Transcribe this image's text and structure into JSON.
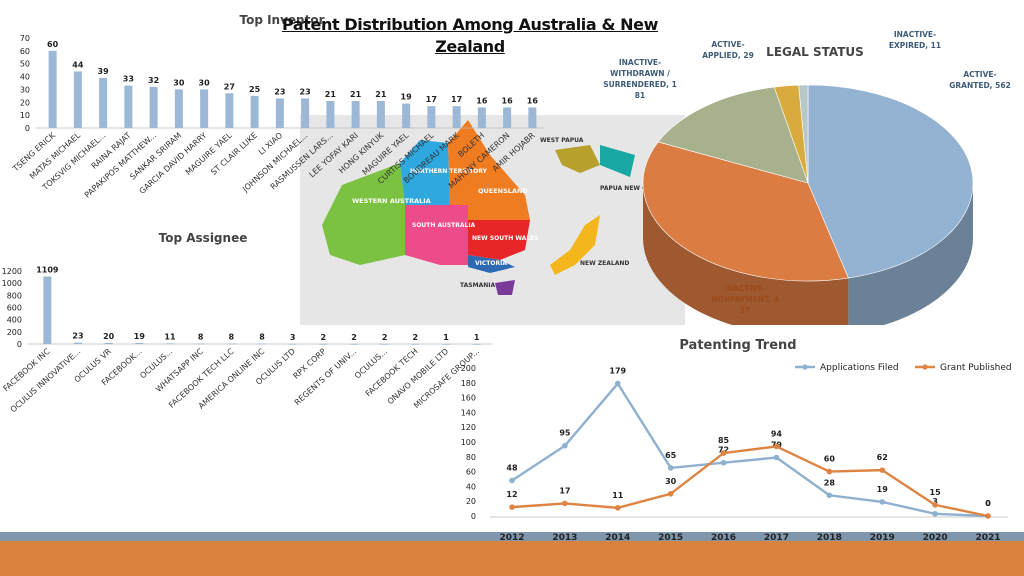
{
  "page": {
    "title": "Patent Distribution Among Australia & New Zealand"
  },
  "colors": {
    "bar": "#9cb8d6",
    "series_blue": "#8fb0cf",
    "series_orange": "#de8443",
    "footer_band": "#7f96ad",
    "footer_orange": "#d8823e"
  },
  "chart_data": [
    {
      "type": "bar",
      "title": "Top Inventor",
      "categories": [
        "TSENG ERICK",
        "MATAS MICHAEL",
        "TOKSVIG MICHAEL...",
        "RAINA RAJAT",
        "PAPAKIPOS MATTHEW...",
        "SANKAR SRIRAM",
        "GARCIA DAVID HARRY",
        "MAGUIRE YAEL",
        "ST CLAIR LUKE",
        "LI XIAO",
        "JOHNSON MICHAEL...",
        "RASMUSSEN LARS...",
        "LEE YOFAY KARI",
        "HONG KINYUK",
        "MAGUIRE YAEL",
        "CURTISS MICHAEL",
        "BOUDREAU MARK",
        "BOLETH",
        "MAHONY CAMERON",
        "AMIR HOJABR"
      ],
      "values": [
        60,
        44,
        39,
        33,
        32,
        30,
        30,
        27,
        25,
        23,
        23,
        21,
        21,
        21,
        19,
        17,
        17,
        16,
        16,
        16
      ],
      "yticks": [
        0,
        10,
        20,
        30,
        40,
        50,
        60,
        70
      ],
      "ylim": [
        0,
        70
      ]
    },
    {
      "type": "bar",
      "title": "Top Assignee",
      "categories": [
        "FACEBOOK INC",
        "OCULUS INNOVATIVE...",
        "OCULUS VR",
        "FACEBOOK...",
        "OCULUS...",
        "WHATSAPP INC",
        "FACEBOOK TECH LLC",
        "AMERICA ONLINE INC",
        "OCULUS LTD",
        "RPX CORP",
        "REGENTS OF UNIV...",
        "OCULUS...",
        "FACEBOOK TECH",
        "ONAVO MOBILE LTD",
        "MICROSAFE GROUP..."
      ],
      "values": [
        1109,
        23,
        20,
        19,
        11,
        8,
        8,
        8,
        3,
        2,
        2,
        2,
        2,
        1,
        1
      ],
      "yticks": [
        0,
        200,
        400,
        600,
        800,
        1000,
        1200
      ],
      "ylim": [
        0,
        1200
      ]
    },
    {
      "type": "pie",
      "title": "LEGAL STATUS",
      "slices": [
        {
          "label": "ACTIVE-GRANTED, 562",
          "value": 562,
          "color": "#94b3d2"
        },
        {
          "label": "INACTIVE-NONPAYMENT, 437",
          "value": 437,
          "color": "#db7c42"
        },
        {
          "label": "INACTIVE-WITHDRAWN / SURRENDERED, 181",
          "value": 181,
          "color": "#a7b28d"
        },
        {
          "label": "ACTIVE-APPLIED, 29",
          "value": 29,
          "color": "#d9ab3f"
        },
        {
          "label": "INACTIVE-EXPIRED, 11",
          "value": 11,
          "color": "#b7c6c7"
        }
      ]
    },
    {
      "type": "line",
      "title": "Patenting Trend",
      "x": [
        "2012",
        "2013",
        "2014",
        "2015",
        "2016",
        "2017",
        "2018",
        "2019",
        "2020",
        "2021"
      ],
      "yticks": [
        0,
        20,
        40,
        60,
        80,
        100,
        120,
        140,
        160,
        180,
        200
      ],
      "ylim": [
        0,
        200
      ],
      "legend": "top-right",
      "series": [
        {
          "name": "Applications Filed",
          "values": [
            48,
            95,
            179,
            65,
            72,
            79,
            28,
            19,
            3,
            0
          ],
          "color": "#8fb0cf"
        },
        {
          "name": "Grant Published",
          "values": [
            12,
            17,
            11,
            30,
            85,
            94,
            60,
            62,
            15,
            0
          ],
          "color": "#de8443"
        }
      ]
    }
  ],
  "map": {
    "regions": [
      {
        "label": "WESTERN AUSTRALIA",
        "color": "#7cc242"
      },
      {
        "label": "NORTHERN TERRITORY",
        "color": "#2fa8e0"
      },
      {
        "label": "SOUTH AUSTRALIA",
        "color": "#ec4d8a"
      },
      {
        "label": "QUEENSLAND",
        "color": "#f07c22"
      },
      {
        "label": "NEW SOUTH WALES",
        "color": "#e8262a"
      },
      {
        "label": "VICTORIA",
        "color": "#2d6ab3"
      },
      {
        "label": "TASMANIA",
        "color": "#7a3b98"
      },
      {
        "label": "WEST PAPUA",
        "color": "#b7a02b"
      },
      {
        "label": "PAPUA NEW GUINEA",
        "color": "#19a8a3"
      },
      {
        "label": "NEW ZEALAND",
        "color": "#f3b61c"
      }
    ]
  }
}
